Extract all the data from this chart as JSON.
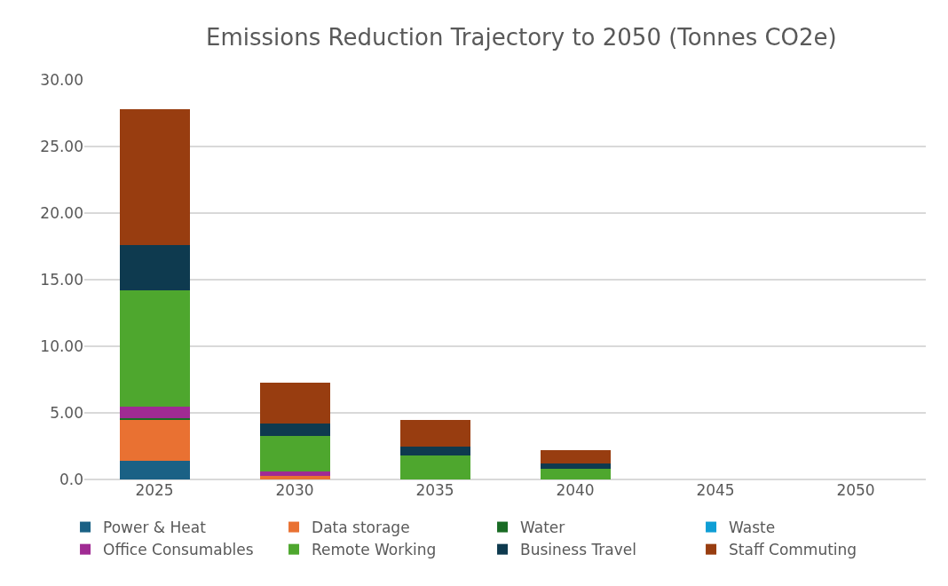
{
  "chart_data": {
    "type": "bar",
    "title": "Emissions Reduction Trajectory to 2050 (Tonnes CO2e)",
    "stacked": true,
    "categories": [
      "2025",
      "2030",
      "2035",
      "2040",
      "2045",
      "2050"
    ],
    "series": [
      {
        "name": "Power & Heat",
        "color": "#1a6185",
        "values": [
          1.4,
          null,
          null,
          null,
          null,
          null
        ]
      },
      {
        "name": "Data storage",
        "color": "#e97132",
        "values": [
          3.1,
          0.3,
          null,
          null,
          null,
          null
        ]
      },
      {
        "name": "Water",
        "color": "#196b24",
        "values": [
          0.1,
          null,
          null,
          null,
          null,
          null
        ]
      },
      {
        "name": "Waste",
        "color": "#0f9ed5",
        "values": [
          null,
          null,
          null,
          null,
          null,
          null
        ]
      },
      {
        "name": "Office Consumables",
        "color": "#a02b93",
        "values": [
          0.85,
          0.3,
          null,
          null,
          null,
          null
        ]
      },
      {
        "name": "Remote Working",
        "color": "#4ea72e",
        "values": [
          8.75,
          2.7,
          1.8,
          0.8,
          null,
          null
        ]
      },
      {
        "name": "Business Travel",
        "color": "#0e3a4f",
        "values": [
          3.4,
          0.9,
          0.7,
          0.4,
          null,
          null
        ]
      },
      {
        "name": "Staff Commuting",
        "color": "#983d10",
        "values": [
          10.2,
          3.1,
          2.0,
          1.0,
          null,
          null
        ]
      }
    ],
    "ylim": [
      0,
      30
    ],
    "yticks": [
      {
        "value": 0,
        "label": "0.0"
      },
      {
        "value": 5,
        "label": "5.00"
      },
      {
        "value": 10,
        "label": "10.00"
      },
      {
        "value": 15,
        "label": "15.00"
      },
      {
        "value": 20,
        "label": "20.00"
      },
      {
        "value": 25,
        "label": "25.00"
      },
      {
        "value": 30,
        "label": "30.00"
      }
    ],
    "grid": "y",
    "legend": "bottom"
  }
}
